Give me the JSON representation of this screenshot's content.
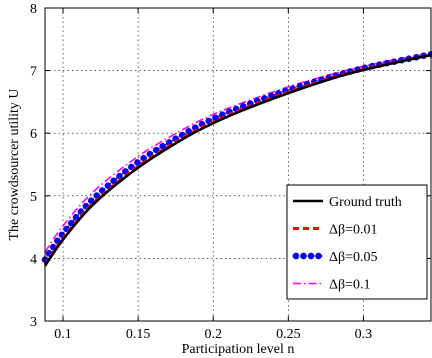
{
  "chart_data": {
    "type": "line",
    "xlabel": "Participation level n",
    "ylabel": "The crowdsourcer utility U",
    "xlim": [
      0.088,
      0.345
    ],
    "ylim": [
      3,
      8
    ],
    "xticks": [
      0.1,
      0.15,
      0.2,
      0.25,
      0.3
    ],
    "xtick_labels": [
      "0.1",
      "0.15",
      "0.2",
      "0.25",
      "0.3"
    ],
    "yticks": [
      3,
      4,
      5,
      6,
      7,
      8
    ],
    "ytick_labels": [
      "3",
      "4",
      "5",
      "6",
      "7",
      "8"
    ],
    "grid": true,
    "legend_position": "lower-right",
    "x": [
      0.088,
      0.1,
      0.12,
      0.15,
      0.18,
      0.2,
      0.22,
      0.25,
      0.28,
      0.3,
      0.32,
      0.345
    ],
    "series": [
      {
        "name": "Ground truth",
        "color": "#000000",
        "style": "solid",
        "values": [
          3.88,
          4.3,
          4.86,
          5.45,
          5.91,
          6.16,
          6.37,
          6.64,
          6.88,
          7.01,
          7.12,
          7.25
        ]
      },
      {
        "name": "Δβ=0.01",
        "color": "#ff0000",
        "style": "dashed",
        "values": [
          3.9,
          4.32,
          4.88,
          5.47,
          5.93,
          6.18,
          6.39,
          6.66,
          6.89,
          7.02,
          7.13,
          7.25
        ]
      },
      {
        "name": "Δβ=0.05",
        "color": "#0000ff",
        "style": "dotted-marker",
        "values": [
          3.98,
          4.4,
          4.95,
          5.54,
          5.98,
          6.23,
          6.43,
          6.69,
          6.91,
          7.04,
          7.14,
          7.26
        ]
      },
      {
        "name": "Δβ=0.1",
        "color": "#ff00ff",
        "style": "dashdot",
        "values": [
          4.1,
          4.52,
          5.06,
          5.63,
          6.06,
          6.3,
          6.49,
          6.74,
          6.95,
          7.07,
          7.17,
          7.28
        ]
      }
    ]
  }
}
